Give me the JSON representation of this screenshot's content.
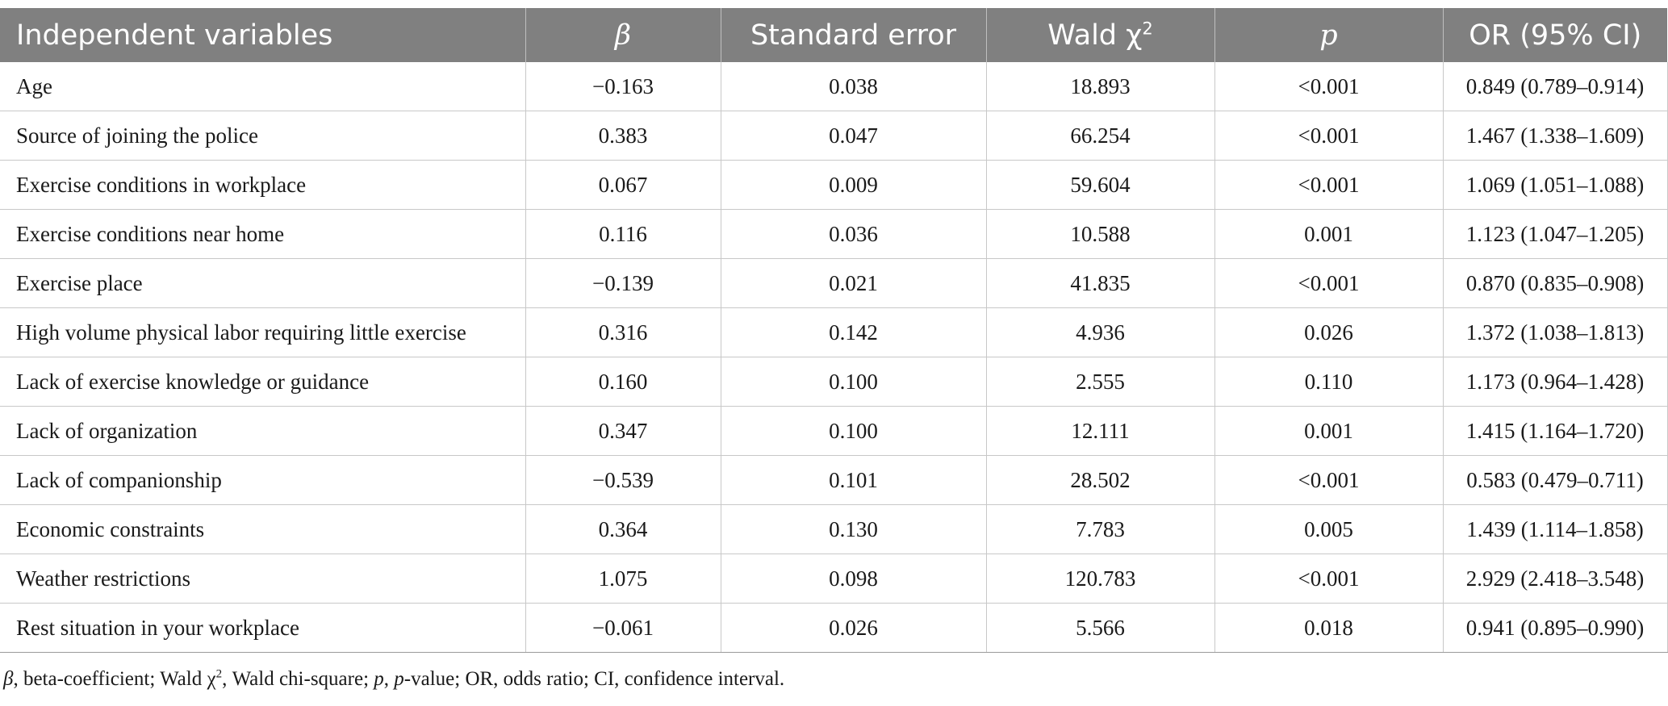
{
  "table": {
    "headers": {
      "col0": "Independent variables",
      "col1": "β",
      "col2": "Standard error",
      "col3_main": "Wald χ",
      "col3_sup": "2",
      "col4": "p",
      "col5": "OR (95% CI)"
    },
    "rows": [
      {
        "variable": "Age",
        "beta": "−0.163",
        "se": "0.038",
        "wald": "18.893",
        "p": "<0.001",
        "or_ci": "0.849 (0.789–0.914)"
      },
      {
        "variable": "Source of joining the police",
        "beta": "0.383",
        "se": "0.047",
        "wald": "66.254",
        "p": "<0.001",
        "or_ci": "1.467 (1.338–1.609)"
      },
      {
        "variable": "Exercise conditions in workplace",
        "beta": "0.067",
        "se": "0.009",
        "wald": "59.604",
        "p": "<0.001",
        "or_ci": "1.069 (1.051–1.088)"
      },
      {
        "variable": "Exercise conditions near home",
        "beta": "0.116",
        "se": "0.036",
        "wald": "10.588",
        "p": "0.001",
        "or_ci": "1.123 (1.047–1.205)"
      },
      {
        "variable": "Exercise place",
        "beta": "−0.139",
        "se": "0.021",
        "wald": "41.835",
        "p": "<0.001",
        "or_ci": "0.870 (0.835–0.908)"
      },
      {
        "variable": "High volume physical labor requiring little exercise",
        "beta": "0.316",
        "se": "0.142",
        "wald": "4.936",
        "p": "0.026",
        "or_ci": "1.372 (1.038–1.813)"
      },
      {
        "variable": "Lack of exercise knowledge or guidance",
        "beta": "0.160",
        "se": "0.100",
        "wald": "2.555",
        "p": "0.110",
        "or_ci": "1.173 (0.964–1.428)"
      },
      {
        "variable": "Lack of organization",
        "beta": "0.347",
        "se": "0.100",
        "wald": "12.111",
        "p": "0.001",
        "or_ci": "1.415 (1.164–1.720)"
      },
      {
        "variable": "Lack of companionship",
        "beta": "−0.539",
        "se": "0.101",
        "wald": "28.502",
        "p": "<0.001",
        "or_ci": "0.583 (0.479–0.711)"
      },
      {
        "variable": "Economic constraints",
        "beta": "0.364",
        "se": "0.130",
        "wald": "7.783",
        "p": "0.005",
        "or_ci": "1.439 (1.114–1.858)"
      },
      {
        "variable": "Weather restrictions",
        "beta": "1.075",
        "se": "0.098",
        "wald": "120.783",
        "p": "<0.001",
        "or_ci": "2.929 (2.418–3.548)"
      },
      {
        "variable": "Rest situation in your workplace",
        "beta": "−0.061",
        "se": "0.026",
        "wald": "5.566",
        "p": "0.018",
        "or_ci": "0.941 (0.895–0.990)"
      }
    ]
  },
  "footnote": {
    "beta_sym": "β",
    "beta_def": ", beta-coefficient; Wald χ",
    "chi_sup": "2",
    "wald_def": ", Wald chi-square; ",
    "p_sym": "p",
    "p_sep": ", ",
    "p_sym2": "p",
    "rest": "-value; OR, odds ratio; CI, confidence interval."
  }
}
